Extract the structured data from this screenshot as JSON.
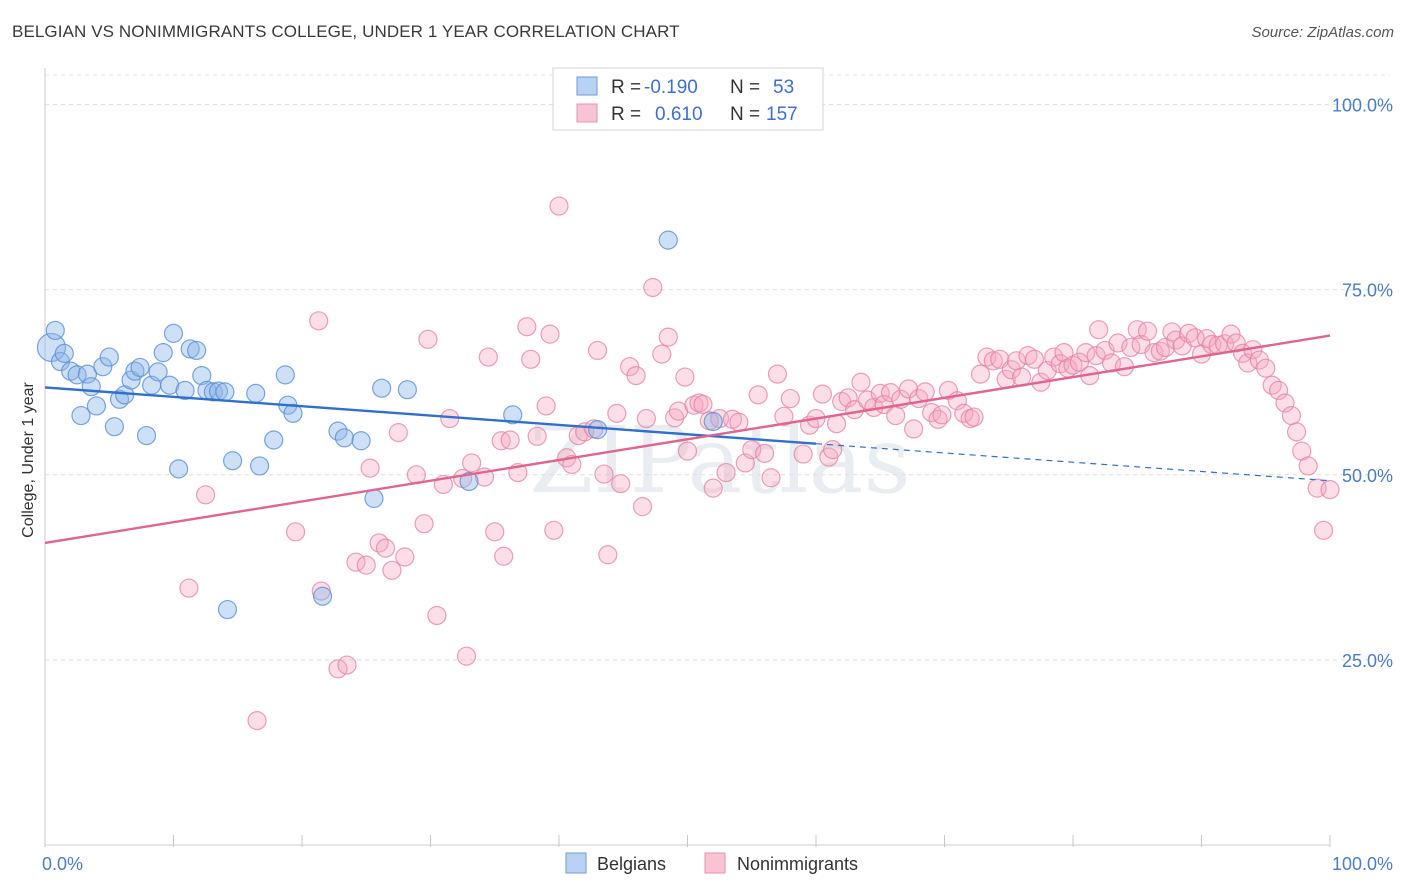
{
  "title": "BELGIAN VS NONIMMIGRANTS COLLEGE, UNDER 1 YEAR CORRELATION CHART",
  "source": "Source: ZipAtlas.com",
  "watermark": "ZIPatlas",
  "legend": {
    "rows": [
      {
        "r_label": "R = ",
        "r_value": "-0.190",
        "n_label": "N = ",
        "n_value": "53"
      },
      {
        "r_label": "R = ",
        "r_value": "0.610",
        "n_label": "N = ",
        "n_value": "157"
      }
    ]
  },
  "chart_data": {
    "type": "scatter",
    "title": "BELGIAN VS NONIMMIGRANTS COLLEGE, UNDER 1 YEAR CORRELATION CHART",
    "xlabel": "",
    "ylabel": "College, Under 1 year",
    "xlim": [
      0,
      100
    ],
    "ylim": [
      0,
      104
    ],
    "x_tick_labels": [
      "0.0%",
      "100.0%"
    ],
    "y_ticks": [
      25,
      50,
      75,
      100
    ],
    "y_tick_labels": [
      "25.0%",
      "50.0%",
      "75.0%",
      "100.0%"
    ],
    "grid": true,
    "series": [
      {
        "name": "Belgians",
        "color": "#8ab4e8",
        "stroke": "#5a8fd6",
        "line_color": "#2f6fd0",
        "trend": {
          "x0": 0,
          "y0": 61.8,
          "x1": 60,
          "y1": 54.2,
          "dash_to_x": 100,
          "dash_to_y": 49.2
        },
        "points": [
          [
            0.5,
            67.2
          ],
          [
            0.8,
            69.5
          ],
          [
            1.2,
            65.3
          ],
          [
            1.5,
            66.4
          ],
          [
            2.0,
            64.0
          ],
          [
            2.5,
            63.5
          ],
          [
            2.8,
            58.0
          ],
          [
            3.3,
            63.6
          ],
          [
            3.6,
            61.9
          ],
          [
            4.0,
            59.3
          ],
          [
            4.5,
            64.6
          ],
          [
            5.0,
            65.9
          ],
          [
            5.4,
            56.5
          ],
          [
            5.8,
            60.2
          ],
          [
            6.2,
            60.8
          ],
          [
            6.7,
            62.8
          ],
          [
            7.0,
            64.0
          ],
          [
            7.4,
            64.5
          ],
          [
            7.9,
            55.3
          ],
          [
            8.3,
            62.1
          ],
          [
            8.8,
            63.9
          ],
          [
            9.2,
            66.5
          ],
          [
            9.7,
            62.1
          ],
          [
            10.0,
            69.1
          ],
          [
            10.4,
            50.8
          ],
          [
            10.9,
            61.4
          ],
          [
            11.3,
            67.0
          ],
          [
            11.8,
            66.8
          ],
          [
            12.2,
            63.4
          ],
          [
            12.6,
            61.4
          ],
          [
            13.1,
            61.2
          ],
          [
            13.5,
            61.3
          ],
          [
            14.0,
            61.2
          ],
          [
            14.2,
            31.8
          ],
          [
            14.6,
            51.9
          ],
          [
            16.4,
            61.0
          ],
          [
            16.7,
            51.2
          ],
          [
            17.8,
            54.7
          ],
          [
            18.7,
            63.5
          ],
          [
            18.9,
            59.4
          ],
          [
            19.3,
            58.3
          ],
          [
            21.6,
            33.6
          ],
          [
            22.8,
            55.9
          ],
          [
            23.3,
            55.0
          ],
          [
            24.6,
            54.6
          ],
          [
            25.6,
            46.8
          ],
          [
            26.2,
            61.7
          ],
          [
            28.2,
            61.5
          ],
          [
            33.0,
            49.1
          ],
          [
            36.4,
            58.1
          ],
          [
            43.0,
            56.1
          ],
          [
            48.5,
            81.7
          ],
          [
            52.0,
            57.2
          ]
        ]
      },
      {
        "name": "Nonimmigrants",
        "color": "#f4a9c0",
        "stroke": "#e67fa0",
        "line_color": "#e0648f",
        "trend": {
          "x0": 0,
          "y0": 40.8,
          "x1": 100,
          "y1": 68.8
        },
        "points": [
          [
            11.2,
            34.7
          ],
          [
            12.5,
            47.3
          ],
          [
            16.5,
            16.8
          ],
          [
            19.5,
            42.3
          ],
          [
            21.5,
            34.3
          ],
          [
            21.3,
            70.8
          ],
          [
            22.8,
            23.8
          ],
          [
            23.5,
            24.3
          ],
          [
            24.2,
            38.2
          ],
          [
            25.0,
            37.8
          ],
          [
            25.3,
            50.9
          ],
          [
            26.0,
            40.8
          ],
          [
            26.5,
            40.1
          ],
          [
            27.0,
            37.1
          ],
          [
            27.5,
            55.7
          ],
          [
            28.0,
            38.9
          ],
          [
            28.9,
            50.0
          ],
          [
            29.5,
            43.4
          ],
          [
            29.8,
            68.3
          ],
          [
            30.5,
            31.0
          ],
          [
            31.0,
            48.7
          ],
          [
            31.5,
            57.6
          ],
          [
            32.5,
            49.5
          ],
          [
            32.8,
            25.5
          ],
          [
            33.2,
            51.6
          ],
          [
            34.2,
            49.7
          ],
          [
            34.5,
            65.9
          ],
          [
            35.0,
            42.3
          ],
          [
            35.5,
            54.6
          ],
          [
            35.7,
            39.0
          ],
          [
            36.2,
            54.7
          ],
          [
            36.8,
            50.3
          ],
          [
            37.5,
            70.0
          ],
          [
            37.8,
            65.6
          ],
          [
            38.3,
            55.2
          ],
          [
            39.0,
            59.3
          ],
          [
            39.3,
            69.0
          ],
          [
            39.6,
            42.5
          ],
          [
            40.0,
            86.3
          ],
          [
            40.6,
            52.3
          ],
          [
            41.0,
            51.4
          ],
          [
            41.5,
            55.3
          ],
          [
            42.0,
            55.8
          ],
          [
            42.7,
            56.2
          ],
          [
            43.0,
            66.8
          ],
          [
            43.5,
            50.1
          ],
          [
            43.8,
            39.2
          ],
          [
            44.5,
            58.3
          ],
          [
            44.8,
            48.8
          ],
          [
            45.5,
            64.6
          ],
          [
            46.0,
            63.4
          ],
          [
            46.5,
            45.7
          ],
          [
            46.8,
            57.6
          ],
          [
            47.3,
            75.3
          ],
          [
            48.0,
            66.3
          ],
          [
            48.5,
            68.6
          ],
          [
            49.0,
            57.7
          ],
          [
            49.3,
            58.6
          ],
          [
            49.8,
            63.2
          ],
          [
            50.0,
            53.2
          ],
          [
            50.5,
            59.4
          ],
          [
            50.9,
            59.7
          ],
          [
            51.2,
            59.5
          ],
          [
            51.7,
            57.3
          ],
          [
            52.0,
            48.2
          ],
          [
            52.5,
            57.6
          ],
          [
            53.0,
            50.3
          ],
          [
            53.5,
            57.5
          ],
          [
            54.0,
            57.1
          ],
          [
            54.5,
            51.6
          ],
          [
            55.0,
            53.4
          ],
          [
            55.5,
            60.8
          ],
          [
            56.0,
            52.9
          ],
          [
            56.5,
            49.6
          ],
          [
            57.0,
            63.6
          ],
          [
            57.5,
            57.9
          ],
          [
            58.0,
            60.3
          ],
          [
            59.0,
            52.8
          ],
          [
            59.5,
            56.7
          ],
          [
            60.0,
            57.6
          ],
          [
            60.5,
            60.9
          ],
          [
            61.0,
            52.4
          ],
          [
            61.3,
            53.4
          ],
          [
            61.6,
            56.9
          ],
          [
            62.0,
            59.9
          ],
          [
            62.5,
            60.4
          ],
          [
            63.0,
            58.8
          ],
          [
            63.5,
            62.5
          ],
          [
            64.0,
            60.1
          ],
          [
            64.5,
            59.1
          ],
          [
            65.0,
            61.0
          ],
          [
            65.3,
            59.5
          ],
          [
            65.8,
            61.1
          ],
          [
            66.2,
            58.0
          ],
          [
            66.6,
            60.2
          ],
          [
            67.2,
            61.6
          ],
          [
            67.6,
            56.2
          ],
          [
            68.0,
            60.3
          ],
          [
            68.5,
            61.2
          ],
          [
            69.0,
            58.4
          ],
          [
            69.5,
            57.5
          ],
          [
            69.8,
            58.1
          ],
          [
            70.3,
            61.4
          ],
          [
            71.0,
            60.0
          ],
          [
            71.5,
            58.3
          ],
          [
            72.0,
            57.6
          ],
          [
            72.3,
            57.8
          ],
          [
            72.8,
            63.6
          ],
          [
            73.3,
            65.9
          ],
          [
            73.8,
            65.4
          ],
          [
            74.3,
            65.6
          ],
          [
            74.8,
            62.9
          ],
          [
            75.2,
            64.2
          ],
          [
            75.6,
            65.4
          ],
          [
            76.0,
            63.2
          ],
          [
            76.5,
            66.1
          ],
          [
            77.0,
            65.6
          ],
          [
            77.5,
            62.5
          ],
          [
            78.0,
            64.1
          ],
          [
            78.5,
            65.9
          ],
          [
            79.0,
            65.0
          ],
          [
            79.3,
            66.5
          ],
          [
            79.6,
            64.4
          ],
          [
            80.0,
            64.8
          ],
          [
            80.5,
            65.2
          ],
          [
            81.0,
            66.5
          ],
          [
            81.3,
            63.4
          ],
          [
            81.8,
            66.1
          ],
          [
            82.0,
            69.6
          ],
          [
            82.5,
            66.8
          ],
          [
            83.0,
            65.1
          ],
          [
            83.5,
            67.8
          ],
          [
            84.0,
            64.6
          ],
          [
            84.5,
            67.2
          ],
          [
            85.0,
            69.6
          ],
          [
            85.3,
            67.6
          ],
          [
            85.8,
            69.4
          ],
          [
            86.3,
            66.5
          ],
          [
            86.8,
            66.7
          ],
          [
            87.2,
            67.2
          ],
          [
            87.7,
            69.3
          ],
          [
            88.0,
            68.2
          ],
          [
            88.5,
            67.4
          ],
          [
            89.0,
            69.1
          ],
          [
            89.5,
            68.5
          ],
          [
            90.0,
            66.3
          ],
          [
            90.4,
            68.4
          ],
          [
            90.8,
            67.6
          ],
          [
            91.3,
            67.5
          ],
          [
            91.8,
            67.7
          ],
          [
            92.3,
            69.0
          ],
          [
            92.7,
            67.8
          ],
          [
            93.2,
            66.4
          ],
          [
            93.6,
            65.1
          ],
          [
            94.0,
            66.9
          ],
          [
            94.5,
            65.5
          ],
          [
            95.0,
            64.4
          ],
          [
            95.5,
            62.1
          ],
          [
            96.0,
            61.4
          ],
          [
            96.5,
            59.7
          ],
          [
            97.0,
            58.0
          ],
          [
            97.4,
            55.8
          ],
          [
            97.8,
            53.2
          ],
          [
            98.3,
            51.2
          ],
          [
            99.0,
            48.2
          ],
          [
            99.5,
            42.5
          ],
          [
            100.0,
            48.0
          ]
        ]
      }
    ]
  },
  "bottom_legend": [
    {
      "label": "Belgians"
    },
    {
      "label": "Nonimmigrants"
    }
  ]
}
